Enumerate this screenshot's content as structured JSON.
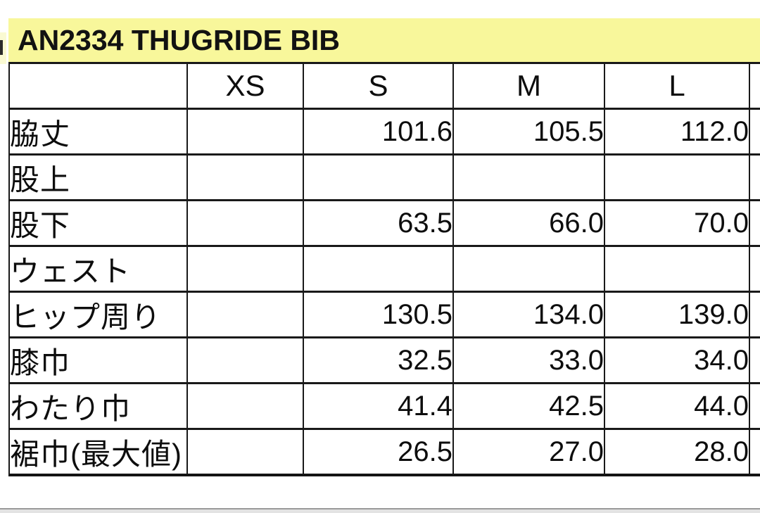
{
  "title": "AN2334 THUGRIDE BIB",
  "size_chart": {
    "columns": [
      "",
      "XS",
      "S",
      "M",
      "L"
    ],
    "rows": [
      {
        "label": "脇丈",
        "values": [
          "",
          "101.6",
          "105.5",
          "112.0"
        ]
      },
      {
        "label": "股上",
        "values": [
          "",
          "",
          "",
          ""
        ]
      },
      {
        "label": "股下",
        "values": [
          "",
          "63.5",
          "66.0",
          "70.0"
        ]
      },
      {
        "label": "ウェスト",
        "values": [
          "",
          "",
          "",
          ""
        ]
      },
      {
        "label": "ヒップ周り",
        "values": [
          "",
          "130.5",
          "134.0",
          "139.0"
        ]
      },
      {
        "label": "膝巾",
        "values": [
          "",
          "32.5",
          "33.0",
          "34.0"
        ]
      },
      {
        "label": "わたり巾",
        "values": [
          "",
          "41.4",
          "42.5",
          "44.0"
        ]
      },
      {
        "label": "裾巾(最大値)",
        "values": [
          "",
          "26.5",
          "27.0",
          "28.0"
        ]
      }
    ]
  },
  "colors": {
    "title_band_bg": "#f8f79b",
    "table_border": "#191919",
    "bottom_rule": "#9a9a9a"
  }
}
